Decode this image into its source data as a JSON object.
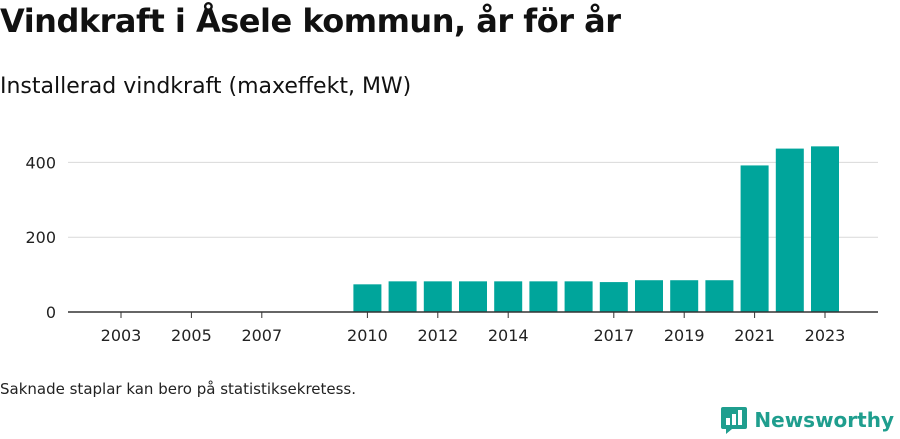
{
  "header": {
    "title": "Vindkraft i Åsele kommun, år för år",
    "subtitle": "Installerad vindkraft (maxeffekt, MW)"
  },
  "footer": {
    "note": "Saknade staplar kan bero på statistiksekretess.",
    "brand": "Newsworthy"
  },
  "colors": {
    "bar": "#00a59b",
    "grid": "#d9d9d9",
    "axis": "#333333",
    "brand": "#1f9e8e"
  },
  "icons": {
    "brand_logo": "bar-chart-speech-bubble-icon"
  },
  "chart_data": {
    "type": "bar",
    "title": "Vindkraft i Åsele kommun, år för år",
    "subtitle": "Installerad vindkraft (maxeffekt, MW)",
    "xlabel": "",
    "ylabel": "",
    "categories": [
      "2003",
      "2004",
      "2005",
      "2006",
      "2007",
      "2008",
      "2009",
      "2010",
      "2011",
      "2012",
      "2013",
      "2014",
      "2015",
      "2016",
      "2017",
      "2018",
      "2019",
      "2020",
      "2021",
      "2022",
      "2023"
    ],
    "values": [
      null,
      null,
      null,
      null,
      null,
      null,
      null,
      74,
      82,
      82,
      82,
      82,
      82,
      82,
      80,
      85,
      85,
      85,
      392,
      437,
      443
    ],
    "x_tick_labels": [
      "2003",
      "2005",
      "2007",
      "2010",
      "2012",
      "2014",
      "2017",
      "2019",
      "2021",
      "2023"
    ],
    "y_ticks": [
      0,
      200,
      400
    ],
    "ylim": [
      0,
      460
    ],
    "grid": true,
    "legend": "none"
  }
}
